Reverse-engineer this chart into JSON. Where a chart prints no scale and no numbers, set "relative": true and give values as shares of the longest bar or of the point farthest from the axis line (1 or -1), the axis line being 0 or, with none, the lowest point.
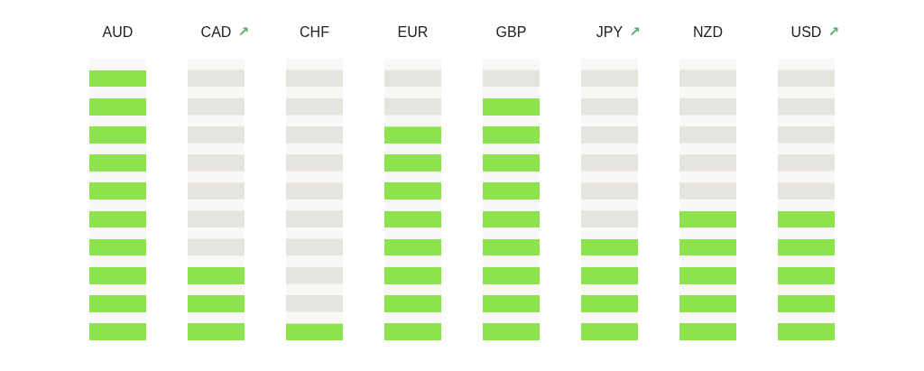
{
  "chart_data": {
    "type": "bar",
    "categories": [
      "AUD",
      "CAD",
      "CHF",
      "EUR",
      "GBP",
      "JPY",
      "NZD",
      "USD"
    ],
    "values": [
      1,
      0.3,
      0.1,
      0.8,
      0.9,
      0.4,
      0.5,
      0.5
    ],
    "color": "#8de34d",
    "relative": true,
    "annotations": [
      "↗",
      "↗",
      "↗"
    ]
  }
}
